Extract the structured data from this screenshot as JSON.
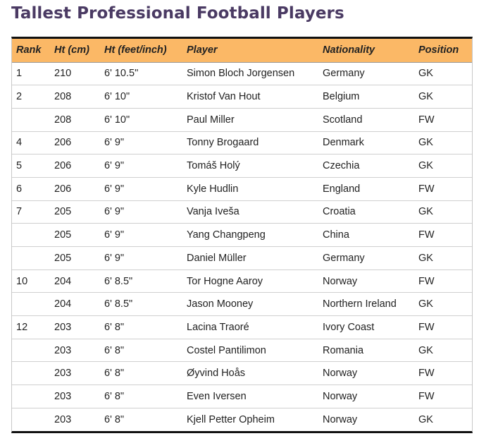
{
  "title": "Tallest Professional Football Players",
  "colors": {
    "header_bg": "#fbb866",
    "title": "#4a3a63",
    "border": "#111111"
  },
  "columns": [
    "Rank",
    "Ht (cm)",
    "Ht (feet/inch)",
    "Player",
    "Nationality",
    "Position"
  ],
  "rows": [
    [
      "1",
      "210",
      "6' 10.5\"",
      "Simon Bloch Jorgensen",
      "Germany",
      "GK"
    ],
    [
      "2",
      "208",
      "6' 10\"",
      "Kristof Van Hout",
      "Belgium",
      "GK"
    ],
    [
      "",
      "208",
      "6' 10\"",
      "Paul Miller",
      "Scotland",
      "FW"
    ],
    [
      "4",
      "206",
      "6' 9\"",
      "Tonny Brogaard",
      "Denmark",
      "GK"
    ],
    [
      "5",
      "206",
      "6' 9\"",
      "Tomáš Holý",
      "Czechia",
      "GK"
    ],
    [
      "6",
      "206",
      "6' 9\"",
      "Kyle Hudlin",
      "England",
      "FW"
    ],
    [
      "7",
      "205",
      "6' 9\"",
      "Vanja Iveša",
      "Croatia",
      "GK"
    ],
    [
      "",
      "205",
      "6' 9\"",
      "Yang Changpeng",
      "China",
      "FW"
    ],
    [
      "",
      "205",
      "6' 9\"",
      "Daniel Müller",
      "Germany",
      "GK"
    ],
    [
      "10",
      "204",
      "6' 8.5\"",
      "Tor Hogne Aaroy",
      "Norway",
      "FW"
    ],
    [
      "",
      "204",
      "6' 8.5\"",
      "Jason Mooney",
      "Northern Ireland",
      "GK"
    ],
    [
      "12",
      "203",
      "6' 8\"",
      "Lacina Traoré",
      "Ivory Coast",
      "FW"
    ],
    [
      "",
      "203",
      "6' 8\"",
      "Costel Pantilimon",
      "Romania",
      "GK"
    ],
    [
      "",
      "203",
      "6' 8\"",
      "Øyvind Hoås",
      "Norway",
      "FW"
    ],
    [
      "",
      "203",
      "6' 8\"",
      "Even Iversen",
      "Norway",
      "FW"
    ],
    [
      "",
      "203",
      "6' 8\"",
      "Kjell Petter Opheim",
      "Norway",
      "GK"
    ]
  ]
}
